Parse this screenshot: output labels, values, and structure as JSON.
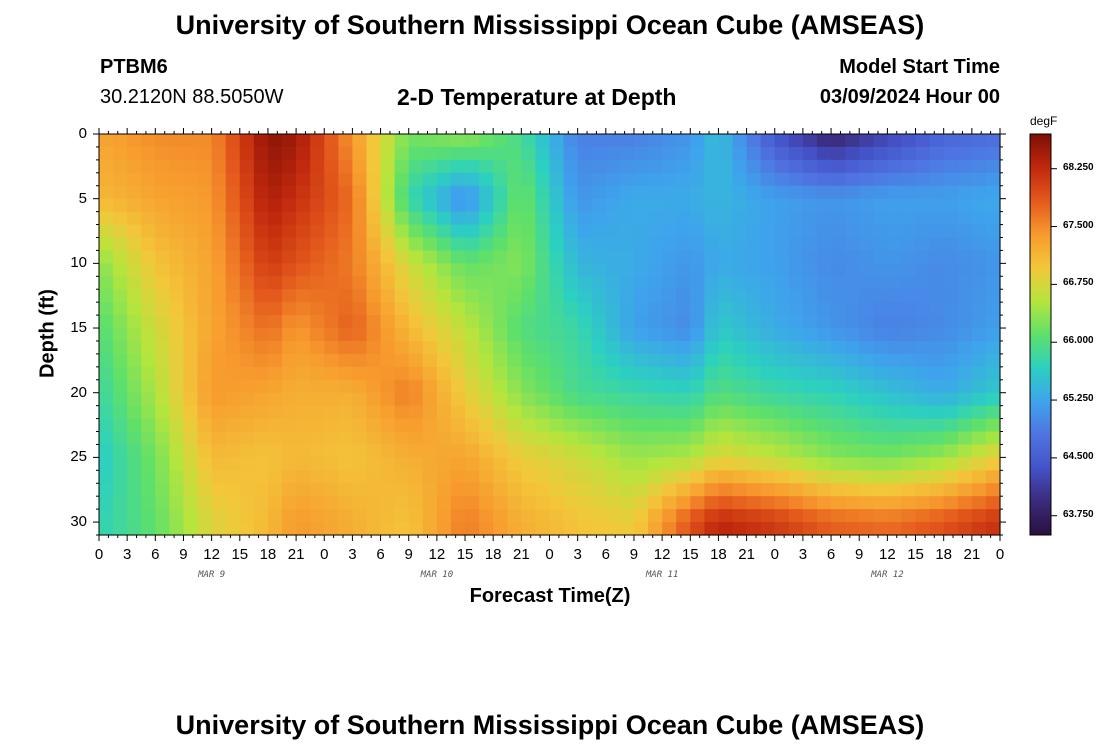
{
  "header": {
    "title": "University of Southern Mississippi Ocean Cube (AMSEAS)",
    "station": "PTBM6",
    "coords": "30.2120N  88.5050W",
    "plot_title": "2-D Temperature at Depth",
    "model_start_label": "Model Start Time",
    "model_start_value": "03/09/2024 Hour 00"
  },
  "footer": {
    "title": "University of Southern Mississippi Ocean Cube (AMSEAS)"
  },
  "colors": {
    "scale": [
      "#2a0f3f",
      "#3b2a7a",
      "#4452c8",
      "#4f74e2",
      "#3ea4ec",
      "#2cd0c0",
      "#5fe06a",
      "#b5e53d",
      "#f3c73a",
      "#f79a2e",
      "#e4591c",
      "#c0280d",
      "#7d0f05"
    ]
  },
  "chart_data": {
    "type": "heatmap",
    "xlabel": "Forecast Time(Z)",
    "ylabel": "Depth (ft)",
    "x_ticks": [
      "0",
      "3",
      "6",
      "9",
      "12",
      "15",
      "18",
      "21",
      "0",
      "3",
      "6",
      "9",
      "12",
      "15",
      "18",
      "21",
      "0",
      "3",
      "6",
      "9",
      "12",
      "15",
      "18",
      "21",
      "0",
      "3",
      "6",
      "9",
      "12",
      "15",
      "18",
      "21",
      "0"
    ],
    "x_dates": [
      "MAR 9",
      "MAR 10",
      "MAR 11",
      "MAR 12"
    ],
    "x_range_hours": [
      0,
      96
    ],
    "y_ticks": [
      "0",
      "5",
      "10",
      "15",
      "20",
      "25",
      "30"
    ],
    "y_range_ft": [
      0,
      31
    ],
    "colorbar_unit": "degF",
    "colorbar_ticks": [
      "68.250",
      "67.500",
      "66.750",
      "66.000",
      "65.250",
      "64.500",
      "63.750"
    ],
    "colorbar_range": [
      63.5,
      68.7
    ],
    "temperature_samples_degF": {
      "time_hours": [
        0,
        6,
        12,
        18,
        21,
        27,
        33,
        39,
        45,
        51,
        57,
        63,
        66,
        72,
        78,
        84,
        90,
        96
      ],
      "depths_ft": [
        0,
        5,
        10,
        15,
        20,
        25,
        30
      ],
      "values": [
        [
          67.3,
          67.5,
          67.5,
          68.6,
          68.5,
          67.4,
          66.2,
          66.4,
          65.9,
          64.9,
          64.9,
          65.1,
          65.5,
          64.4,
          63.8,
          64.2,
          64.6,
          64.7
        ],
        [
          67.1,
          67.3,
          67.4,
          68.4,
          68.2,
          67.7,
          65.8,
          65.0,
          66.2,
          65.1,
          65.3,
          65.3,
          65.4,
          65.2,
          65.1,
          65.2,
          65.2,
          65.3
        ],
        [
          66.3,
          67.0,
          67.3,
          68.1,
          67.9,
          67.6,
          66.7,
          66.1,
          66.3,
          65.4,
          65.3,
          65.1,
          65.3,
          65.2,
          65.0,
          65.1,
          65.0,
          65.1
        ],
        [
          66.0,
          66.7,
          67.3,
          67.7,
          67.4,
          67.8,
          67.1,
          66.6,
          66.0,
          65.8,
          65.2,
          65.0,
          65.6,
          65.3,
          65.1,
          64.9,
          65.0,
          65.2
        ],
        [
          65.8,
          66.5,
          67.4,
          67.3,
          67.2,
          67.2,
          67.6,
          66.9,
          66.3,
          65.9,
          65.8,
          65.7,
          66.0,
          65.8,
          65.7,
          65.5,
          65.3,
          65.6
        ],
        [
          65.6,
          66.2,
          67.1,
          67.0,
          67.1,
          67.0,
          67.2,
          67.3,
          66.9,
          66.7,
          66.4,
          66.5,
          66.8,
          66.6,
          66.3,
          66.2,
          66.4,
          66.9
        ],
        [
          65.7,
          66.1,
          66.8,
          67.1,
          67.4,
          67.2,
          67.0,
          67.6,
          67.2,
          67.0,
          66.9,
          67.9,
          68.3,
          68.1,
          67.8,
          67.7,
          67.9,
          68.2
        ]
      ]
    }
  }
}
